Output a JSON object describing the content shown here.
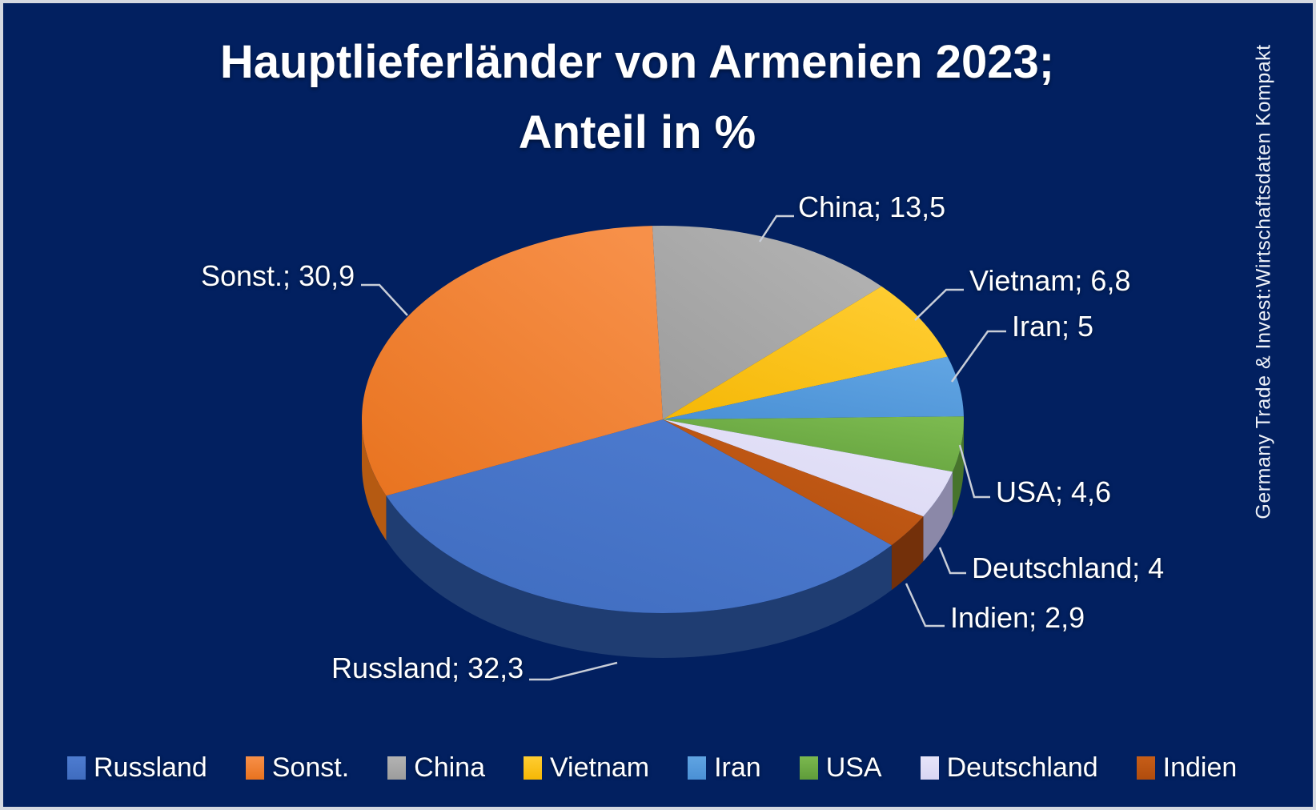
{
  "frame": {
    "background": "#022060",
    "border_color": "#d5d8e0"
  },
  "title": {
    "line1": "Hauptlieferländer von Armenien 2023;",
    "line2": "Anteil in %",
    "color": "#ffffff"
  },
  "watermark": {
    "text": "Germany Trade & Invest:Wirtschaftsdaten Kompakt",
    "color": "#eef1f7"
  },
  "chart_data": {
    "type": "pie",
    "is_3d": true,
    "title": "Hauptlieferländer von Armenien 2023; Anteil in %",
    "unit": "%",
    "direction": "clockwise",
    "start_angle_deg": 130.5,
    "legend_position": "bottom",
    "categories": [
      "Russland",
      "Sonst.",
      "China",
      "Vietnam",
      "Iran",
      "USA",
      "Deutschland",
      "Indien"
    ],
    "values": [
      32.3,
      30.9,
      13.5,
      6.8,
      5,
      4.6,
      4,
      2.9
    ],
    "slices": [
      {
        "name": "Russland",
        "value": 32.3,
        "callout": "Russland; 32,3",
        "color": "#3f6cbf",
        "color_light": "#4e7cd0",
        "wall_color": "#1f3d72"
      },
      {
        "name": "Sonst.",
        "value": 30.9,
        "callout": "Sonst.; 30,9",
        "color": "#e8731f",
        "color_light": "#f79049",
        "wall_color": "#b55a12"
      },
      {
        "name": "China",
        "value": 13.5,
        "callout": "China; 13,5",
        "color": "#9c9c9c",
        "color_light": "#b3b3b3",
        "wall_color": "#6f6f6f"
      },
      {
        "name": "Vietnam",
        "value": 6.8,
        "callout": "Vietnam; 6,8",
        "color": "#f5b705",
        "color_light": "#ffcd32",
        "wall_color": "#b38600"
      },
      {
        "name": "Iran",
        "value": 5,
        "callout": "Iran; 5",
        "color": "#4a90d5",
        "color_light": "#60a4e2",
        "wall_color": "#33658f"
      },
      {
        "name": "USA",
        "value": 4.6,
        "callout": "USA; 4,6",
        "color": "#5f9c3a",
        "color_light": "#7bb94f",
        "wall_color": "#47742c"
      },
      {
        "name": "Deutschland",
        "value": 4,
        "callout": "Deutschland; 4",
        "color": "#d9d6f3",
        "color_light": "#e6e4f9",
        "wall_color": "#8b88a8"
      },
      {
        "name": "Indien",
        "value": 2.9,
        "callout": "Indien; 2,9",
        "color": "#b04c0d",
        "color_light": "#c75e18",
        "wall_color": "#73300a"
      }
    ],
    "leader_line_color": "#c9ced8",
    "label_color": "#ffffff"
  }
}
